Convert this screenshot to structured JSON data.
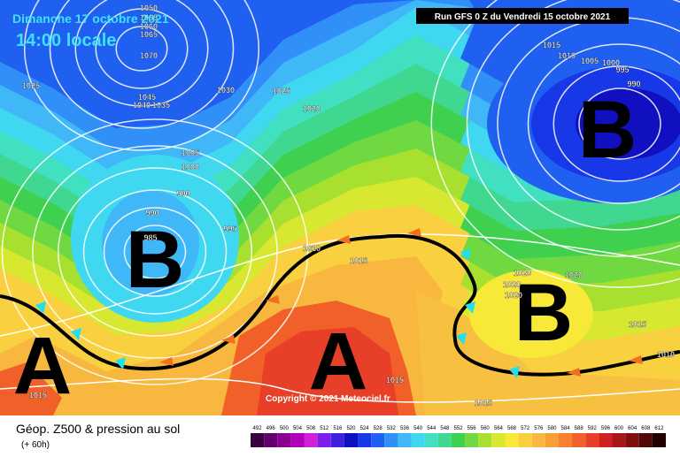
{
  "header": {
    "date": "Dimanche 17 octobre 2021",
    "time": "14:00 locale",
    "run": "Run GFS 0 Z du Vendredi 15 octobre 2021"
  },
  "map": {
    "pressure_centers": [
      "A",
      "A",
      "B",
      "B",
      "B"
    ],
    "isobar_labels": [
      1050,
      1055,
      1060,
      1065,
      1070,
      1045,
      1040,
      1035,
      1030,
      1025,
      1020,
      1025,
      1005,
      1000,
      990,
      990,
      985,
      995,
      1010,
      1015,
      1020,
      1020,
      1020,
      1020,
      1015,
      1015,
      1015,
      1015,
      1015,
      1010,
      1005,
      1000,
      995,
      990,
      1010
    ],
    "copyright": "Copyright © 2021 Meteociel.fr"
  },
  "footer": {
    "title": "Géop. Z500 & pression au sol",
    "lead": "(+ 60h)",
    "scale": [
      {
        "value": 492,
        "color": "#3a0040"
      },
      {
        "value": 496,
        "color": "#600070"
      },
      {
        "value": 500,
        "color": "#8a0090"
      },
      {
        "value": 504,
        "color": "#b000b8"
      },
      {
        "value": 508,
        "color": "#d020d8"
      },
      {
        "value": 512,
        "color": "#7a20e8"
      },
      {
        "value": 516,
        "color": "#4020e0"
      },
      {
        "value": 520,
        "color": "#1010c0"
      },
      {
        "value": 524,
        "color": "#1838e8"
      },
      {
        "value": 528,
        "color": "#2060f0"
      },
      {
        "value": 532,
        "color": "#3090f8"
      },
      {
        "value": 536,
        "color": "#40b8f8"
      },
      {
        "value": 540,
        "color": "#40d8f0"
      },
      {
        "value": 544,
        "color": "#40e0c0"
      },
      {
        "value": 548,
        "color": "#40d890"
      },
      {
        "value": 552,
        "color": "#40d050"
      },
      {
        "value": 556,
        "color": "#70d840"
      },
      {
        "value": 560,
        "color": "#a8e030"
      },
      {
        "value": 564,
        "color": "#d8e830"
      },
      {
        "value": 568,
        "color": "#f8e838"
      },
      {
        "value": 572,
        "color": "#f8d040"
      },
      {
        "value": 576,
        "color": "#f8b840"
      },
      {
        "value": 580,
        "color": "#f8a038"
      },
      {
        "value": 584,
        "color": "#f88030"
      },
      {
        "value": 588,
        "color": "#f06028"
      },
      {
        "value": 592,
        "color": "#e84028"
      },
      {
        "value": 596,
        "color": "#d02020"
      },
      {
        "value": 600,
        "color": "#a81818"
      },
      {
        "value": 604,
        "color": "#801010"
      },
      {
        "value": 608,
        "color": "#500808"
      },
      {
        "value": 612,
        "color": "#200000"
      }
    ]
  }
}
